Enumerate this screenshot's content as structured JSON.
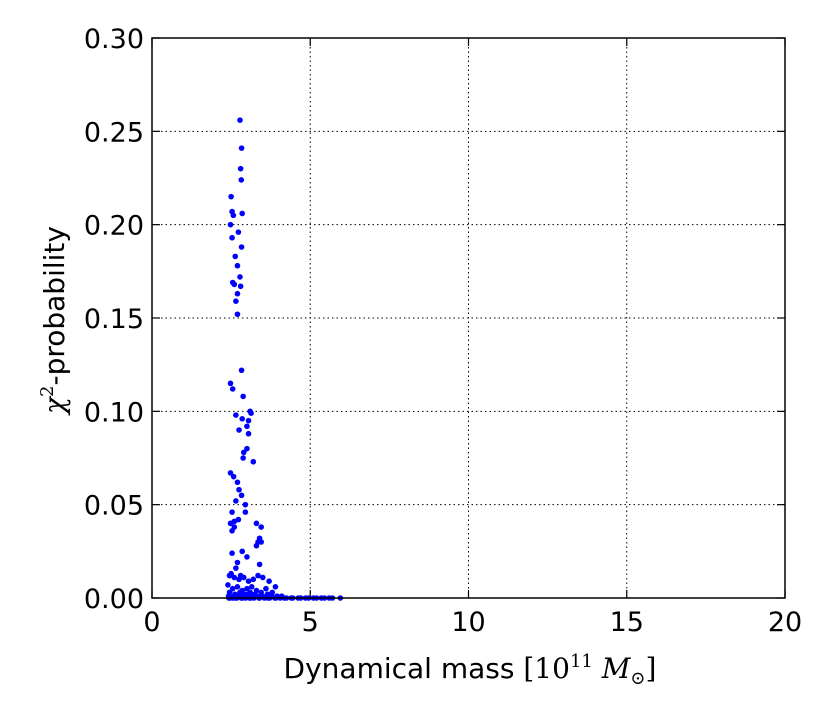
{
  "chart_data": {
    "type": "scatter",
    "title": "",
    "xlabel": {
      "text": "Dynamical mass ",
      "math_open": "[10",
      "math_exp": "11",
      "math_var": " M",
      "math_sub": "⊙",
      "math_close": "]"
    },
    "ylabel": {
      "chi": "χ",
      "exp": "2",
      "text": "-probability"
    },
    "xlim": [
      0,
      20
    ],
    "ylim": [
      0,
      0.3
    ],
    "xticks": [
      0,
      5,
      10,
      15,
      20
    ],
    "yticks": [
      0.0,
      0.05,
      0.1,
      0.15,
      0.2,
      0.25,
      0.3
    ],
    "xtick_labels": [
      "0",
      "5",
      "10",
      "15",
      "20"
    ],
    "ytick_labels": [
      "0.00",
      "0.05",
      "0.10",
      "0.15",
      "0.20",
      "0.25",
      "0.30"
    ],
    "grid": true,
    "marker_color": "#0000ff",
    "series": [
      {
        "x": [
          2.78,
          2.83,
          2.8,
          2.82,
          2.5,
          2.53,
          2.57,
          2.85,
          2.48,
          2.53,
          2.73,
          2.83,
          2.63,
          2.7,
          2.78,
          2.55,
          2.6,
          2.8,
          2.7,
          2.65,
          2.7,
          2.83,
          2.48,
          2.55,
          2.88,
          3.1,
          3.13,
          2.65,
          3.05,
          2.85,
          3.0,
          2.75,
          3.05,
          3.0,
          2.9,
          2.88,
          3.2,
          2.48,
          2.58,
          2.7,
          2.75,
          2.83,
          2.95,
          2.95,
          2.65,
          2.53,
          2.6,
          2.73,
          3.3,
          3.45,
          2.48,
          2.53,
          2.6,
          3.4,
          3.35,
          3.45,
          3.3,
          2.85,
          3.0,
          2.53,
          2.7,
          3.4,
          2.65,
          2.8,
          2.5,
          2.45,
          2.6,
          2.75,
          2.9,
          3.05,
          3.2,
          3.35,
          3.5,
          3.7,
          3.9,
          2.4,
          2.55,
          2.7,
          2.85,
          3.0,
          3.15,
          3.3,
          3.6,
          3.8,
          2.45,
          2.62,
          2.78,
          2.95,
          3.1,
          3.25,
          3.45,
          3.65,
          2.42,
          2.58,
          2.72,
          2.88,
          3.02,
          3.18,
          3.32,
          3.48,
          3.62,
          3.78,
          3.95,
          4.1,
          2.43,
          2.55,
          2.68,
          2.82,
          2.96,
          3.08,
          3.22,
          3.38,
          3.55,
          3.72,
          3.88,
          4.05,
          4.25,
          4.45,
          4.7,
          4.95,
          5.2,
          5.45,
          5.7,
          5.95,
          2.46,
          2.64,
          2.86,
          3.12,
          3.4,
          3.66,
          3.92,
          4.18,
          4.4,
          4.62,
          4.85,
          5.1,
          5.35,
          5.6
        ],
        "y": [
          0.256,
          0.241,
          0.23,
          0.224,
          0.215,
          0.207,
          0.205,
          0.206,
          0.2,
          0.193,
          0.196,
          0.188,
          0.183,
          0.178,
          0.172,
          0.169,
          0.168,
          0.167,
          0.163,
          0.159,
          0.152,
          0.122,
          0.115,
          0.112,
          0.108,
          0.1,
          0.099,
          0.098,
          0.095,
          0.096,
          0.092,
          0.09,
          0.088,
          0.08,
          0.078,
          0.075,
          0.073,
          0.067,
          0.065,
          0.062,
          0.058,
          0.055,
          0.05,
          0.046,
          0.052,
          0.046,
          0.041,
          0.042,
          0.04,
          0.038,
          0.04,
          0.036,
          0.038,
          0.032,
          0.03,
          0.03,
          0.028,
          0.025,
          0.022,
          0.024,
          0.019,
          0.018,
          0.016,
          0.012,
          0.013,
          0.012,
          0.011,
          0.01,
          0.011,
          0.009,
          0.01,
          0.012,
          0.011,
          0.009,
          0.006,
          0.007,
          0.005,
          0.006,
          0.004,
          0.005,
          0.006,
          0.004,
          0.005,
          0.003,
          0.003,
          0.002,
          0.003,
          0.002,
          0.003,
          0.002,
          0.003,
          0.002,
          0.001,
          0.001,
          0.001,
          0.001,
          0.001,
          0.001,
          0.001,
          0.001,
          0.001,
          0.001,
          0.001,
          0.001,
          0.0,
          0.0,
          0.0,
          0.0,
          0.0,
          0.0,
          0.0,
          0.0,
          0.0,
          0.0,
          0.0,
          0.0,
          0.0,
          0.0,
          0.0,
          0.0,
          0.0,
          0.0,
          0.0,
          0.0,
          0.0,
          0.0,
          0.0,
          0.0,
          0.0,
          0.0,
          0.0,
          0.0,
          0.0,
          0.0,
          0.0,
          0.0,
          0.0,
          0.0
        ]
      }
    ]
  }
}
